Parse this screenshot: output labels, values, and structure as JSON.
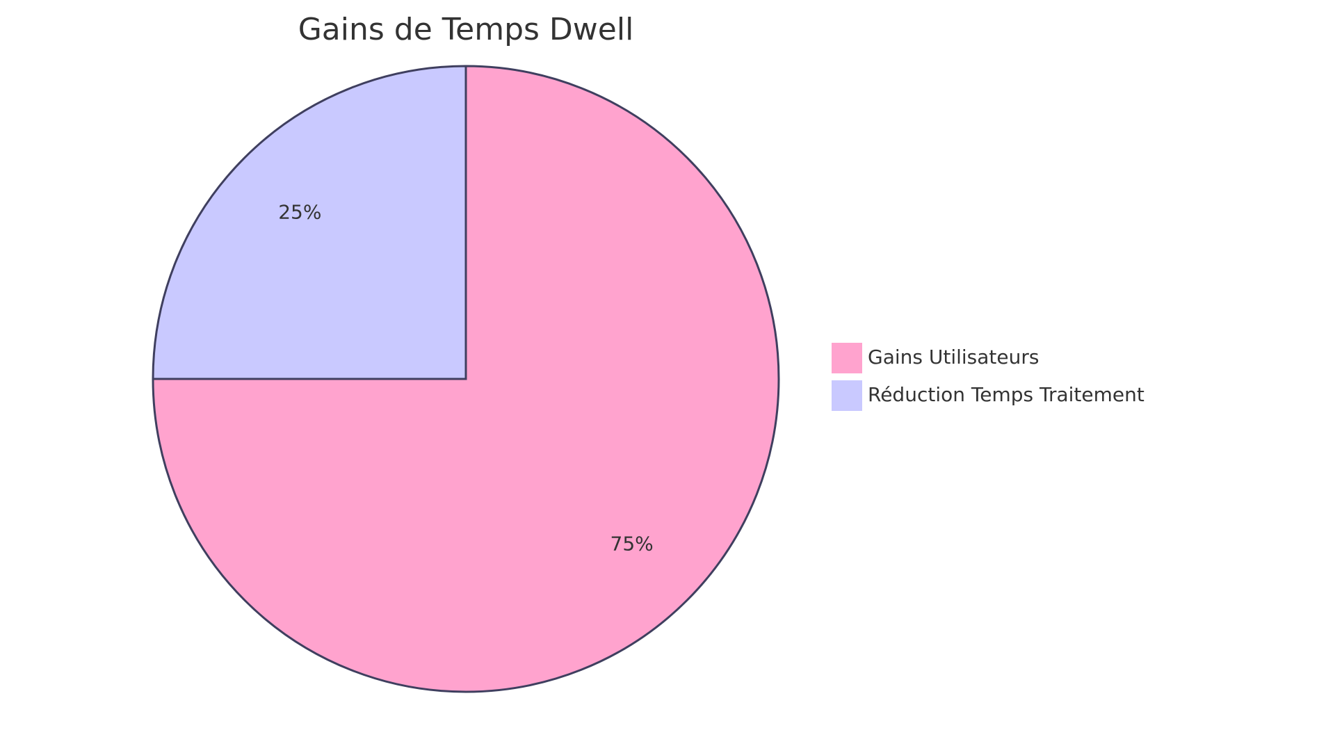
{
  "chart_data": {
    "type": "pie",
    "title": "Gains de Temps Dwell",
    "slices": [
      {
        "name": "Gains Utilisateurs",
        "value": 75,
        "label": "75%",
        "color": "#FFA3CE"
      },
      {
        "name": "Réduction Temps Traitement",
        "value": 25,
        "label": "25%",
        "color": "#C9C9FF"
      }
    ],
    "legend_position": "right",
    "stroke_color": "#3F3F5F"
  }
}
